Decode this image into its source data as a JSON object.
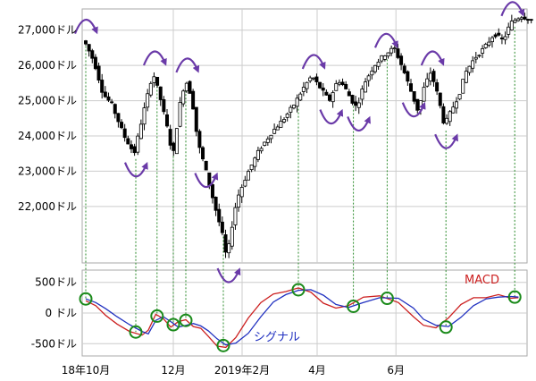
{
  "chart_data": [
    {
      "type": "candlestick",
      "y_ticks": [
        {
          "value": 27000,
          "label": "27,000ドル"
        },
        {
          "value": 26000,
          "label": "26,000ドル"
        },
        {
          "value": 25000,
          "label": "25,000ドル"
        },
        {
          "value": 24000,
          "label": "24,000ドル"
        },
        {
          "value": 23000,
          "label": "23,000ドル"
        },
        {
          "value": 22000,
          "label": "22,000ドル"
        }
      ],
      "ylim": [
        20500,
        27500
      ],
      "x_range_days": [
        0,
        300
      ],
      "grid": true,
      "price_path": [
        [
          0,
          26700
        ],
        [
          8,
          26100
        ],
        [
          15,
          25200
        ],
        [
          22,
          24900
        ],
        [
          32,
          24000
        ],
        [
          40,
          23500
        ],
        [
          47,
          24600
        ],
        [
          55,
          25800
        ],
        [
          60,
          25200
        ],
        [
          66,
          24300
        ],
        [
          71,
          23400
        ],
        [
          76,
          24800
        ],
        [
          81,
          25600
        ],
        [
          86,
          25100
        ],
        [
          91,
          23800
        ],
        [
          96,
          23200
        ],
        [
          101,
          22500
        ],
        [
          106,
          21800
        ],
        [
          110,
          21300
        ],
        [
          114,
          20500
        ],
        [
          118,
          21400
        ],
        [
          122,
          22200
        ],
        [
          130,
          22900
        ],
        [
          140,
          23600
        ],
        [
          150,
          24100
        ],
        [
          160,
          24500
        ],
        [
          168,
          24900
        ],
        [
          176,
          25400
        ],
        [
          182,
          25700
        ],
        [
          190,
          25300
        ],
        [
          196,
          25000
        ],
        [
          203,
          25600
        ],
        [
          208,
          25400
        ],
        [
          214,
          25000
        ],
        [
          218,
          24800
        ],
        [
          224,
          25500
        ],
        [
          232,
          26000
        ],
        [
          240,
          26300
        ],
        [
          248,
          26500
        ],
        [
          255,
          25900
        ],
        [
          262,
          25200
        ],
        [
          267,
          24700
        ],
        [
          272,
          25400
        ],
        [
          277,
          25800
        ],
        [
          281,
          25400
        ],
        [
          285,
          24800
        ],
        [
          288,
          24300
        ],
        [
          292,
          24600
        ],
        [
          300,
          25200
        ],
        [
          305,
          25800
        ],
        [
          312,
          26200
        ],
        [
          320,
          26500
        ],
        [
          328,
          26900
        ],
        [
          335,
          26700
        ],
        [
          341,
          27200
        ],
        [
          349,
          27400
        ],
        [
          357,
          27300
        ]
      ],
      "peaks": [
        0,
        55,
        81,
        182,
        240,
        277,
        341
      ],
      "troughs": [
        40,
        96,
        114,
        196,
        218,
        262,
        288
      ]
    },
    {
      "type": "line",
      "y_ticks": [
        {
          "value": 500,
          "label": "500ドル"
        },
        {
          "value": 0,
          "label": "0 ドル"
        },
        {
          "value": -500,
          "label": "-500ドル"
        }
      ],
      "ylim": [
        -700,
        700
      ],
      "x_ticks": [
        {
          "day": 0,
          "label": "18年10月"
        },
        {
          "day": 70,
          "label": "12月"
        },
        {
          "day": 125,
          "label": "2019年2月"
        },
        {
          "day": 185,
          "label": "4月"
        },
        {
          "day": 248,
          "label": "6月"
        }
      ],
      "series": [
        {
          "name": "MACD",
          "color": "#cc2020",
          "x": [
            0,
            8,
            16,
            25,
            35,
            45,
            50,
            56,
            62,
            68,
            74,
            80,
            86,
            92,
            98,
            105,
            112,
            120,
            130,
            140,
            150,
            160,
            170,
            180,
            190,
            200,
            210,
            222,
            235,
            250,
            262,
            270,
            280,
            290,
            300,
            310,
            320,
            330,
            340,
            346
          ],
          "y": [
            200,
            120,
            -40,
            -180,
            -300,
            -360,
            -280,
            -20,
            -90,
            -230,
            -140,
            -110,
            -220,
            -250,
            -380,
            -540,
            -560,
            -400,
            -80,
            170,
            310,
            350,
            410,
            340,
            160,
            80,
            120,
            260,
            280,
            170,
            -60,
            -200,
            -240,
            -80,
            140,
            250,
            250,
            300,
            240,
            250
          ]
        },
        {
          "name": "シグナル",
          "color": "#2030c0",
          "x": [
            0,
            8,
            16,
            25,
            35,
            45,
            50,
            56,
            62,
            68,
            74,
            80,
            86,
            92,
            98,
            105,
            112,
            120,
            130,
            140,
            150,
            160,
            170,
            180,
            190,
            200,
            210,
            222,
            235,
            250,
            262,
            270,
            280,
            290,
            300,
            310,
            320,
            330,
            340,
            346
          ],
          "y": [
            230,
            170,
            70,
            -60,
            -190,
            -300,
            -340,
            -120,
            -60,
            -140,
            -230,
            -200,
            -170,
            -210,
            -290,
            -420,
            -520,
            -490,
            -330,
            -60,
            180,
            300,
            370,
            380,
            290,
            140,
            90,
            170,
            250,
            240,
            80,
            -100,
            -200,
            -220,
            -70,
            120,
            230,
            260,
            270,
            260
          ]
        }
      ],
      "markers": [
        {
          "x": 0,
          "y": 230
        },
        {
          "x": 40,
          "y": -310
        },
        {
          "x": 57,
          "y": -50
        },
        {
          "x": 70,
          "y": -190
        },
        {
          "x": 80,
          "y": -120
        },
        {
          "x": 110,
          "y": -530
        },
        {
          "x": 170,
          "y": 380
        },
        {
          "x": 214,
          "y": 110
        },
        {
          "x": 241,
          "y": 240
        },
        {
          "x": 288,
          "y": -230
        },
        {
          "x": 343,
          "y": 260
        }
      ],
      "legend": [
        "MACD",
        "シグナル"
      ]
    }
  ],
  "colors": {
    "arrow": "#6a3aa8",
    "connector": "#2a8a2a",
    "marker_ring": "#1a8a1a",
    "grid": "#cccccc",
    "candle_up": "#ffffff",
    "candle_down": "#000000"
  }
}
